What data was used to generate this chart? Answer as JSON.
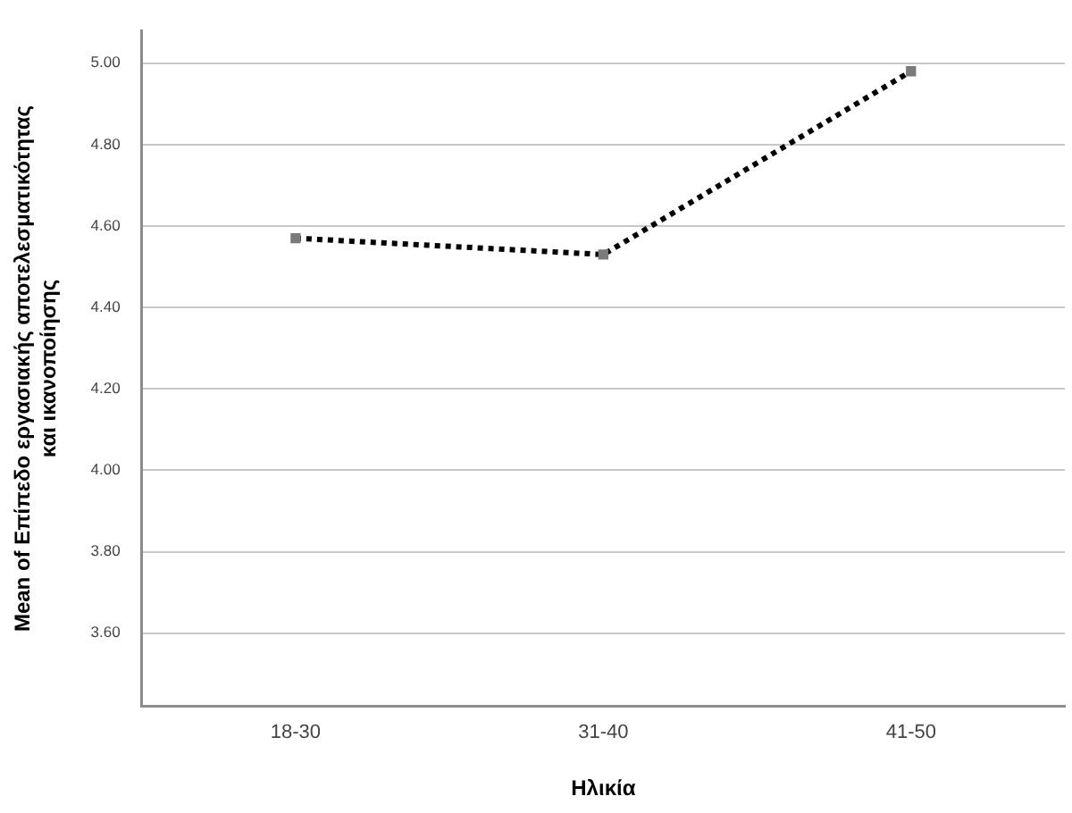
{
  "chart_data": {
    "type": "line",
    "xlabel": "Ηλικία",
    "ylabel": "Mean of Επίπεδο εργασιακής αποτελεσματικότητας\nκαι ικανοποίησης",
    "categories": [
      "18-30",
      "31-40",
      "41-50"
    ],
    "series": [
      {
        "color": "#000000",
        "values": [
          4.57,
          4.53,
          4.98
        ]
      }
    ],
    "ylim": [
      3.42,
      5.08
    ],
    "yticks": [
      {
        "value": 3.6,
        "label": "3.60"
      },
      {
        "value": 3.8,
        "label": "3.80"
      },
      {
        "value": 4.0,
        "label": "4.00"
      },
      {
        "value": 4.2,
        "label": "4.20"
      },
      {
        "value": 4.4,
        "label": "4.40"
      },
      {
        "value": 4.6,
        "label": "4.60"
      },
      {
        "value": 4.8,
        "label": "4.80"
      },
      {
        "value": 5.0,
        "label": "5.00"
      }
    ],
    "grid": "y",
    "legend": false,
    "marker": "square",
    "line_style": "dotted"
  }
}
